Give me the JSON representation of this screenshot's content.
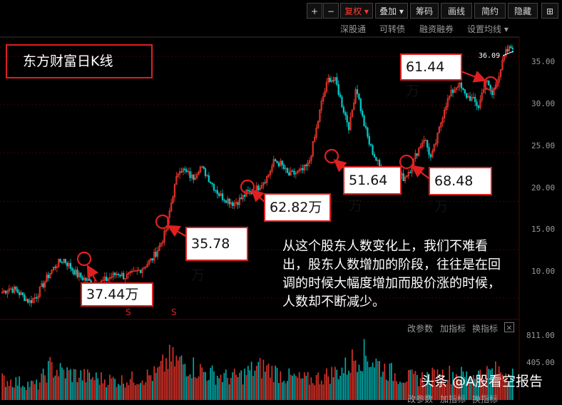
{
  "toolbar": {
    "plus": "+",
    "minus": "−",
    "fuquan": "复权",
    "diejia": "叠加",
    "chouma": "筹码",
    "huaxian": "画线",
    "jianyue": "简约",
    "yincang": "隐藏",
    "grid_icon": "grid-icon"
  },
  "subbar": {
    "shengutong": "深股通",
    "kezhuanzhai": "可转债",
    "rongzi": "融资融券",
    "shezhi": "设置均线"
  },
  "title": "东方财富日K线",
  "last_price": "36.09",
  "annotations": [
    {
      "label": "37.44万"
    },
    {
      "label": "35.78万"
    },
    {
      "label": "62.82万"
    },
    {
      "label": "51.64万"
    },
    {
      "label": "68.48万"
    },
    {
      "label": "61.44万"
    }
  ],
  "comment": "从这个股东人数变化上，我们不难看出，股东人数增加的阶段，往往是在回调的时候大幅度增加而股价涨的时候，人数却不断减少。",
  "dividend_mark": "S",
  "volume_tools": {
    "gaicanshu": "改参数",
    "jiazhibiao": "加指标",
    "huanzhibiao": "换指标",
    "close": "×"
  },
  "bottom_tools": {
    "gaicanshu": "改参数",
    "jiazhibiao": "加指标",
    "huanzhibiao": "换指标"
  },
  "watermark": "头条 @A股看空报告",
  "colors": {
    "up": "#ff3b30",
    "down": "#00c8c8",
    "annotation": "#e02020"
  },
  "chart_data": {
    "type": "candlestick",
    "price_axis": {
      "ticks": [
        "35.00",
        "30.00",
        "25.00",
        "20.00",
        "15.00",
        "10.00"
      ],
      "ylim": [
        8,
        37
      ]
    },
    "volume_axis": {
      "ticks": [
        "811.00",
        "405.00"
      ],
      "ylim": [
        0,
        900
      ]
    },
    "close_path": [
      10.6,
      11.0,
      10.8,
      10.2,
      9.6,
      10.2,
      11.4,
      12.6,
      13.5,
      14.0,
      13.2,
      12.4,
      12.0,
      11.6,
      11.4,
      11.8,
      12.2,
      12.6,
      12.2,
      12.4,
      12.8,
      13.4,
      14.0,
      15.2,
      16.8,
      20.5,
      23.5,
      23.0,
      22.4,
      23.6,
      22.8,
      21.6,
      20.6,
      20.2,
      19.8,
      20.2,
      20.9,
      21.0,
      21.8,
      22.6,
      24.2,
      23.8,
      22.7,
      22.9,
      23.1,
      23.8,
      26.9,
      30.5,
      32.8,
      32.4,
      29.8,
      27.6,
      32.0,
      28.4,
      25.8,
      24.2,
      22.8,
      22.4,
      22.9,
      22.4,
      23.4,
      25.2,
      26.6,
      24.4,
      26.8,
      29.8,
      31.2,
      32.2,
      31.0,
      30.6,
      29.8,
      32.6,
      31.0,
      33.2,
      35.4,
      36.09
    ],
    "volume_levels": [
      260,
      240,
      210,
      190,
      420,
      360,
      330,
      300,
      280,
      260,
      250,
      270,
      300,
      330,
      520,
      480,
      430,
      360,
      320,
      290,
      300,
      380,
      420,
      360,
      300,
      270,
      260,
      300,
      350,
      420,
      600,
      540,
      420,
      330,
      290,
      280,
      300,
      320,
      340,
      310,
      330,
      350,
      380,
      330
    ]
  }
}
